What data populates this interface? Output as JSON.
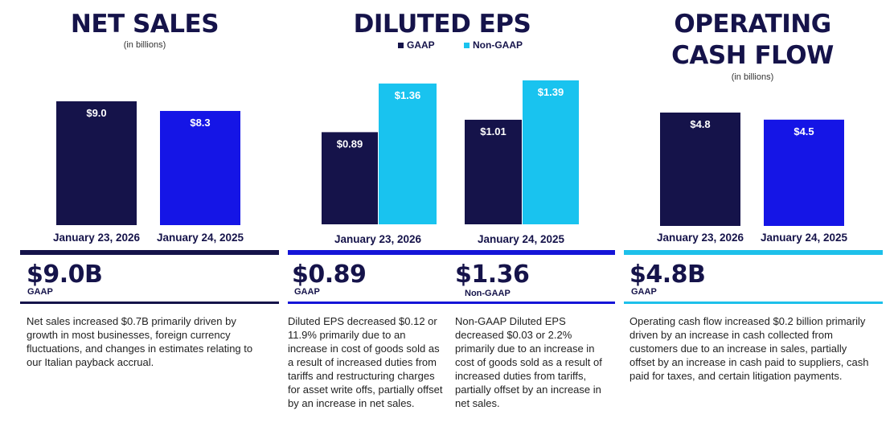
{
  "colors": {
    "navy": "#15134a",
    "blue": "#1515e6",
    "cyan": "#19c3ef",
    "rule_net": "#15134a",
    "rule_eps": "#1515d8",
    "rule_cash": "#1dc0ea"
  },
  "net_sales": {
    "title": "NET SALES",
    "subtitle": "(in billions)",
    "headline": "$9.0B",
    "headline_label": "GAAP",
    "description": "Net sales increased $0.7B primarily driven by growth in most businesses, foreign currency fluctuations, and changes in estimates relating to our Italian payback accrual."
  },
  "diluted_eps": {
    "title": "DILUTED EPS",
    "legend": {
      "gaap": "GAAP",
      "non_gaap": "Non-GAAP"
    },
    "gaap_headline": "$0.89",
    "gaap_label": "GAAP",
    "gaap_description": "Diluted EPS decreased $0.12 or 11.9% primarily due to an increase in cost of goods sold as a result of increased duties from tariffs and restructuring charges for asset write offs, partially offset by an increase in net sales.",
    "nongaap_headline": "$1.36",
    "nongaap_label": "Non-GAAP",
    "nongaap_description": "Non-GAAP Diluted EPS decreased $0.03 or 2.2% primarily due to an increase in cost of goods sold as a result of increased duties from tariffs, partially offset by an increase in net sales."
  },
  "cash_flow": {
    "title_line1": "OPERATING",
    "title_line2": "CASH FLOW",
    "subtitle": "(in billions)",
    "headline": "$4.8B",
    "headline_label": "GAAP",
    "description": "Operating cash flow increased $0.2 billion primarily driven by an increase in cash collected from customers due to an increase in sales, partially offset by an increase in cash paid to suppliers, cash paid for taxes, and certain litigation payments."
  },
  "chart_data": [
    {
      "type": "bar",
      "title": "NET SALES",
      "ylabel": "(in billions)",
      "categories": [
        "January 23, 2026",
        "January 24, 2025"
      ],
      "values": [
        9.0,
        8.3
      ],
      "labels": [
        "$9.0",
        "$8.3"
      ],
      "ylim": [
        0,
        9.0
      ]
    },
    {
      "type": "bar",
      "title": "DILUTED EPS",
      "categories": [
        "January 23, 2026",
        "January 24, 2025"
      ],
      "series": [
        {
          "name": "GAAP",
          "values": [
            0.89,
            1.01
          ],
          "labels": [
            "$0.89",
            "$1.01"
          ]
        },
        {
          "name": "Non-GAAP",
          "values": [
            1.36,
            1.39
          ],
          "labels": [
            "$1.36",
            "$1.39"
          ]
        }
      ],
      "ylim": [
        0,
        1.39
      ]
    },
    {
      "type": "bar",
      "title": "OPERATING CASH FLOW",
      "ylabel": "(in billions)",
      "categories": [
        "January 23, 2026",
        "January 24, 2025"
      ],
      "values": [
        4.8,
        4.5
      ],
      "labels": [
        "$4.8",
        "$4.5"
      ],
      "ylim": [
        0,
        4.8
      ]
    }
  ]
}
